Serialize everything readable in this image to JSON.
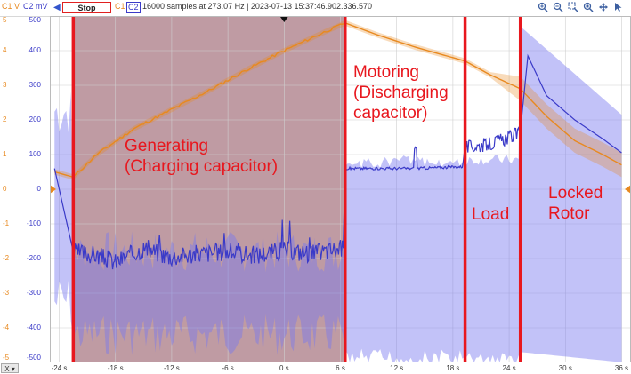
{
  "toolbar": {
    "c1_unit": "C1 V",
    "c2_unit": "C2 mV",
    "stop_label": "Stop",
    "c1_label": "C1",
    "c2_label": "C2",
    "status": "16000 samples at 273.07 Hz | 2023-07-13 15:37:46.902.336.570",
    "tools": [
      "zoom-in-icon",
      "zoom-out-icon",
      "zoom-box-icon",
      "zoom-fit-icon",
      "pan-icon",
      "cursor-icon"
    ]
  },
  "axis": {
    "c1_ticks": [
      "5",
      "4",
      "3",
      "2",
      "1",
      "0",
      "-1",
      "-2",
      "-3",
      "-4",
      "-5"
    ],
    "c2_ticks": [
      "500",
      "400",
      "300",
      "200",
      "100",
      "0",
      "-100",
      "-200",
      "-300",
      "-400",
      "-500"
    ],
    "x_ticks": [
      "-24 s",
      "-18 s",
      "-12 s",
      "-6 s",
      "0 s",
      "6 s",
      "12 s",
      "18 s",
      "24 s",
      "30 s",
      "36 s"
    ],
    "x_button": "X",
    "x_dropdown": "▾"
  },
  "colors": {
    "c1": "#e8891f",
    "c2": "#3a3ac8",
    "annotation": "#e8171e",
    "charging_shade": "#b48a93"
  },
  "annotations": {
    "generating_line1": "Generating",
    "generating_line2": "(Charging capacitor)",
    "motoring_line1": "Motoring",
    "motoring_line2": "(Discharging",
    "motoring_line3": "capacitor)",
    "load": "Load",
    "locked_line1": "Locked",
    "locked_line2": "Rotor"
  },
  "chart_data": {
    "type": "line",
    "xlabel": "",
    "xlim": [
      -25,
      37
    ],
    "ylim_c1": [
      -5,
      5
    ],
    "ylim_c2": [
      -500,
      500
    ],
    "phase_boundaries_s": [
      -22.5,
      6.5,
      19.3,
      25.2
    ],
    "series": [
      {
        "name": "C1",
        "unit": "V",
        "x": [
          -24.5,
          -22.5,
          -20,
          -16,
          -12,
          -8,
          -4,
          0,
          4,
          6.5,
          10,
          14,
          19.3,
          22,
          25.2,
          28,
          31,
          34,
          36
        ],
        "values": [
          0.5,
          0.35,
          1.0,
          1.75,
          2.3,
          2.85,
          3.45,
          4.0,
          4.5,
          4.8,
          4.45,
          4.1,
          3.7,
          3.3,
          2.9,
          2.1,
          1.4,
          1.0,
          0.7
        ]
      },
      {
        "name": "C2",
        "unit": "mV",
        "x": [
          -24.5,
          -22.5,
          -20,
          -18,
          -15,
          -12,
          -9,
          -6,
          -3,
          0,
          3,
          6.3,
          6.5,
          10,
          14,
          19,
          19.3,
          22,
          25,
          25.2,
          26,
          28,
          31,
          34,
          36
        ],
        "values": [
          60,
          -180,
          -190,
          -210,
          -170,
          -195,
          -185,
          -180,
          -190,
          -175,
          -185,
          -170,
          60,
          60,
          60,
          65,
          120,
          130,
          160,
          170,
          385,
          270,
          200,
          145,
          105
        ]
      }
    ]
  }
}
